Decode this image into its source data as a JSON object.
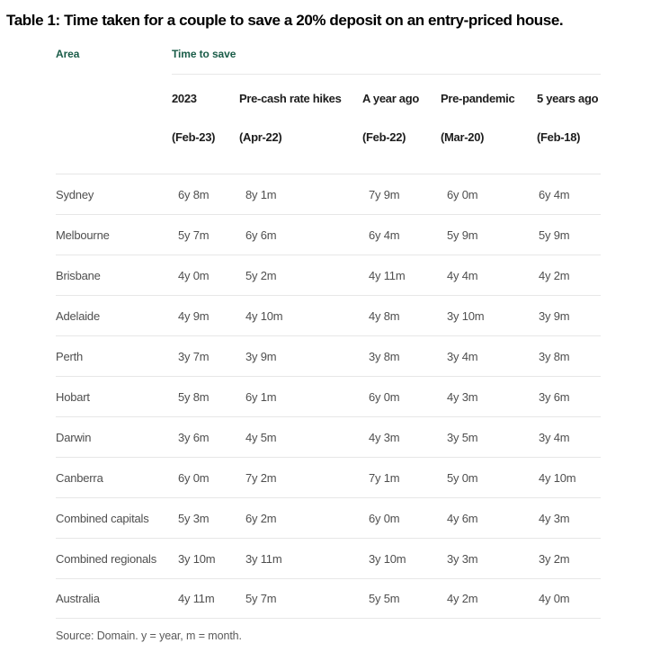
{
  "title": "Table 1: Time taken for a couple to save a 20% deposit on an entry-priced house.",
  "chart_data": {
    "type": "table",
    "title": "Table 1: Time taken for a couple to save a 20% deposit on an entry-priced house.",
    "area_header": "Area",
    "group_header": "Time to save",
    "columns": [
      {
        "label": "2023",
        "sublabel": "(Feb-23)"
      },
      {
        "label": "Pre-cash rate hikes",
        "sublabel": "(Apr-22)"
      },
      {
        "label": "A year ago",
        "sublabel": "(Feb-22)"
      },
      {
        "label": "Pre-pandemic",
        "sublabel": "(Mar-20)"
      },
      {
        "label": "5 years ago",
        "sublabel": "(Feb-18)"
      }
    ],
    "rows": [
      {
        "area": "Sydney",
        "values": [
          "6y 8m",
          "8y 1m",
          "7y 9m",
          "6y 0m",
          "6y 4m"
        ]
      },
      {
        "area": "Melbourne",
        "values": [
          "5y 7m",
          "6y 6m",
          "6y 4m",
          "5y 9m",
          "5y 9m"
        ]
      },
      {
        "area": "Brisbane",
        "values": [
          "4y 0m",
          "5y 2m",
          "4y 11m",
          "4y 4m",
          "4y 2m"
        ]
      },
      {
        "area": "Adelaide",
        "values": [
          "4y 9m",
          "4y 10m",
          "4y 8m",
          "3y 10m",
          "3y 9m"
        ]
      },
      {
        "area": "Perth",
        "values": [
          "3y 7m",
          "3y 9m",
          "3y 8m",
          "3y 4m",
          "3y 8m"
        ]
      },
      {
        "area": "Hobart",
        "values": [
          "5y 8m",
          "6y 1m",
          "6y 0m",
          "4y 3m",
          "3y 6m"
        ]
      },
      {
        "area": "Darwin",
        "values": [
          "3y 6m",
          "4y 5m",
          "4y 3m",
          "3y 5m",
          "3y 4m"
        ]
      },
      {
        "area": "Canberra",
        "values": [
          "6y 0m",
          "7y 2m",
          "7y 1m",
          "5y 0m",
          "4y 10m"
        ]
      },
      {
        "area": "Combined capitals",
        "values": [
          "5y 3m",
          "6y 2m",
          "6y 0m",
          "4y 6m",
          "4y 3m"
        ]
      },
      {
        "area": "Combined regionals",
        "values": [
          "3y 10m",
          "3y 11m",
          "3y 10m",
          "3y 3m",
          "3y 2m"
        ]
      },
      {
        "area": "Australia",
        "values": [
          "4y 11m",
          "5y 7m",
          "5y 5m",
          "4y 2m",
          "4y 0m"
        ]
      }
    ],
    "source": "Source: Domain. y = year, m = month.",
    "colors": {
      "group_header_green": "#1a5c48",
      "header_black": "#1d1d1d",
      "body_text_gray": "#4f4f4f",
      "divider_gray": "#e7e7e7"
    }
  }
}
